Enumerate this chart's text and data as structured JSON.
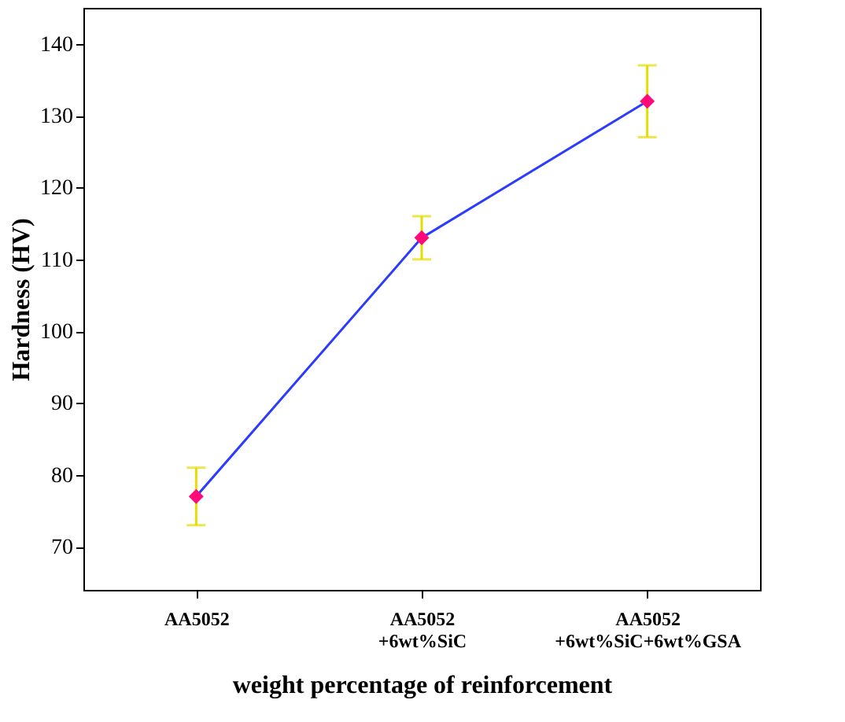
{
  "chart_data": {
    "type": "line",
    "xlabel": "weight percentage of reinforcement",
    "ylabel": "Hardness (HV)",
    "categories": [
      "AA5052",
      "AA5052\n+6wt%SiC",
      "AA5052\n+6wt%SiC+6wt%GSA"
    ],
    "series": [
      {
        "color": "#2b3bff",
        "values": [
          77,
          113,
          132
        ],
        "errors": [
          4,
          3,
          5
        ]
      }
    ],
    "ylim": [
      64,
      145
    ],
    "yticks": [
      70,
      80,
      90,
      100,
      110,
      120,
      130,
      140
    ],
    "grid": false,
    "marker": "diamond"
  }
}
